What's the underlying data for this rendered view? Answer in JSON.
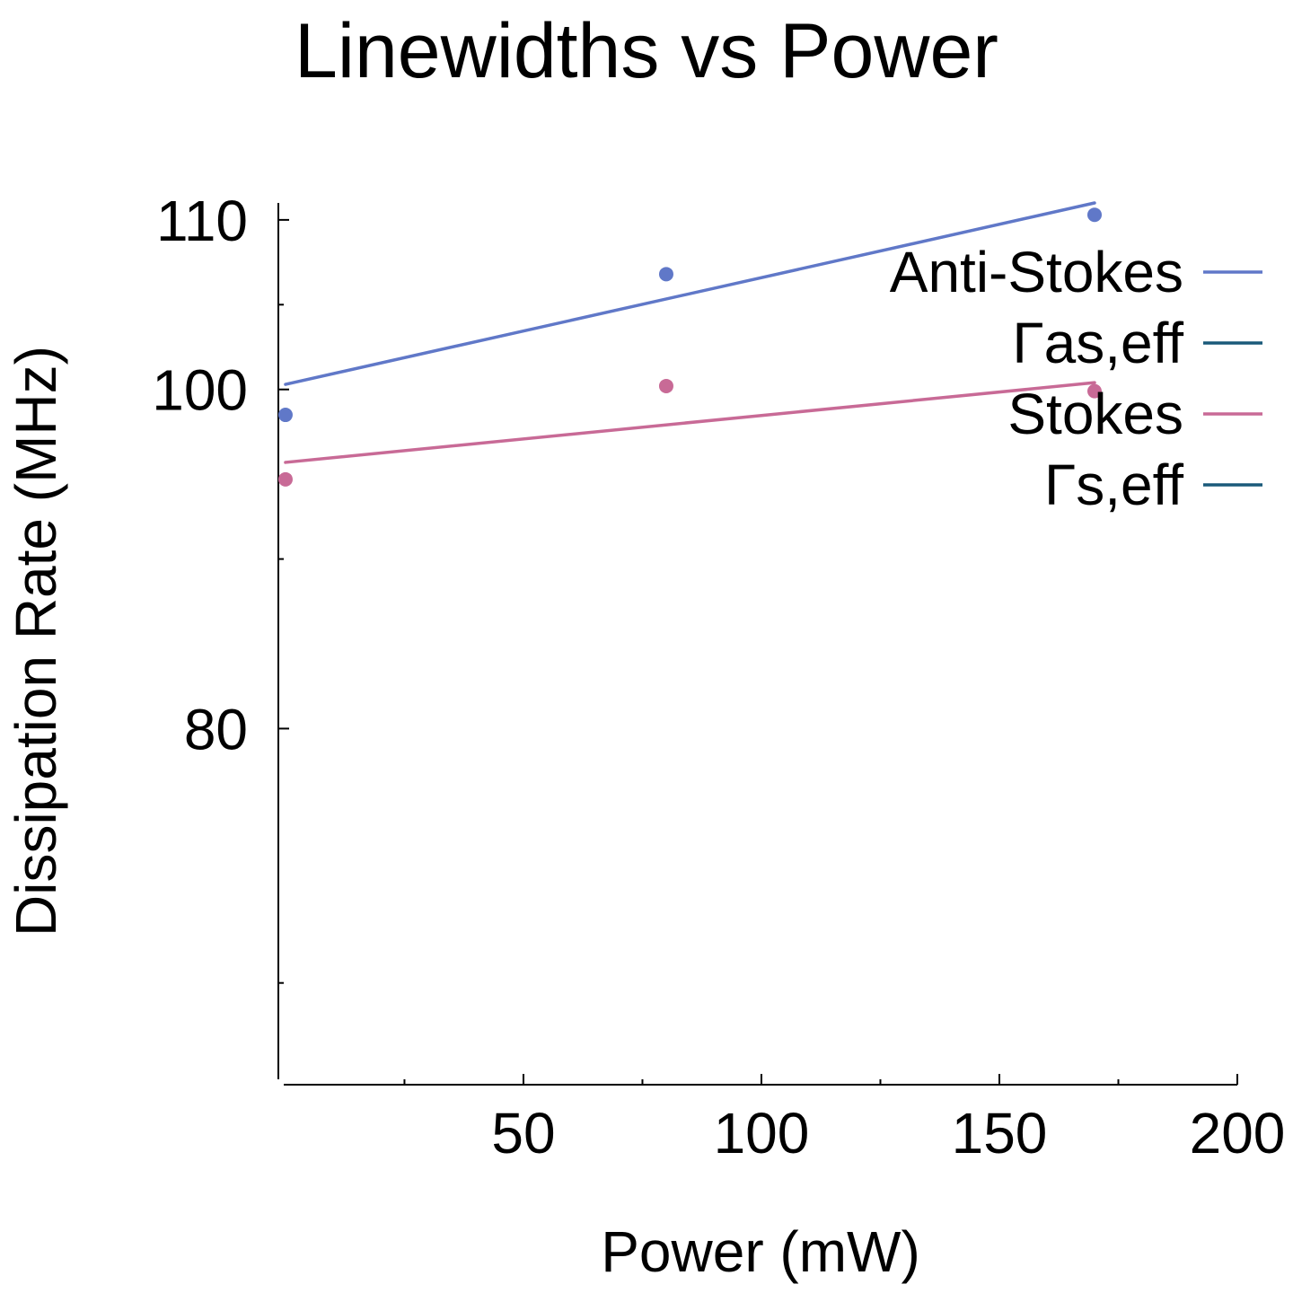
{
  "chart_data": {
    "type": "line",
    "title": "Linewidths vs Power",
    "xlabel": "Power (mW)",
    "ylabel": "Dissipation Rate (MHz)",
    "xlim": [
      -1.5,
      200
    ],
    "ylim": [
      59,
      111
    ],
    "x_ticks": [
      50,
      100,
      150,
      200
    ],
    "x_minor_ticks": [
      25,
      75,
      125,
      175
    ],
    "y_ticks": [
      80,
      100,
      110
    ],
    "y_minor_ticks": [
      65,
      90,
      105
    ],
    "grid": false,
    "legend_position": "top-right",
    "series": [
      {
        "name": "Anti-Stokes",
        "kind": "scatter",
        "color": "#6078c8",
        "x": [
          0,
          80,
          170
        ],
        "y": [
          98.5,
          106.8,
          110.3
        ]
      },
      {
        "name": "Γas,eff",
        "kind": "line",
        "color": "#6078c8",
        "legend_color": "#1a5a7a",
        "x": [
          0,
          170
        ],
        "y": [
          100.3,
          111.0
        ]
      },
      {
        "name": "Stokes",
        "kind": "scatter",
        "color": "#c86a96",
        "x": [
          0,
          80,
          170
        ],
        "y": [
          94.7,
          100.2,
          99.9
        ]
      },
      {
        "name": "Γs,eff",
        "kind": "line",
        "color": "#c86a96",
        "legend_color": "#1a5a7a",
        "x": [
          0,
          170
        ],
        "y": [
          95.7,
          100.4
        ]
      }
    ]
  }
}
